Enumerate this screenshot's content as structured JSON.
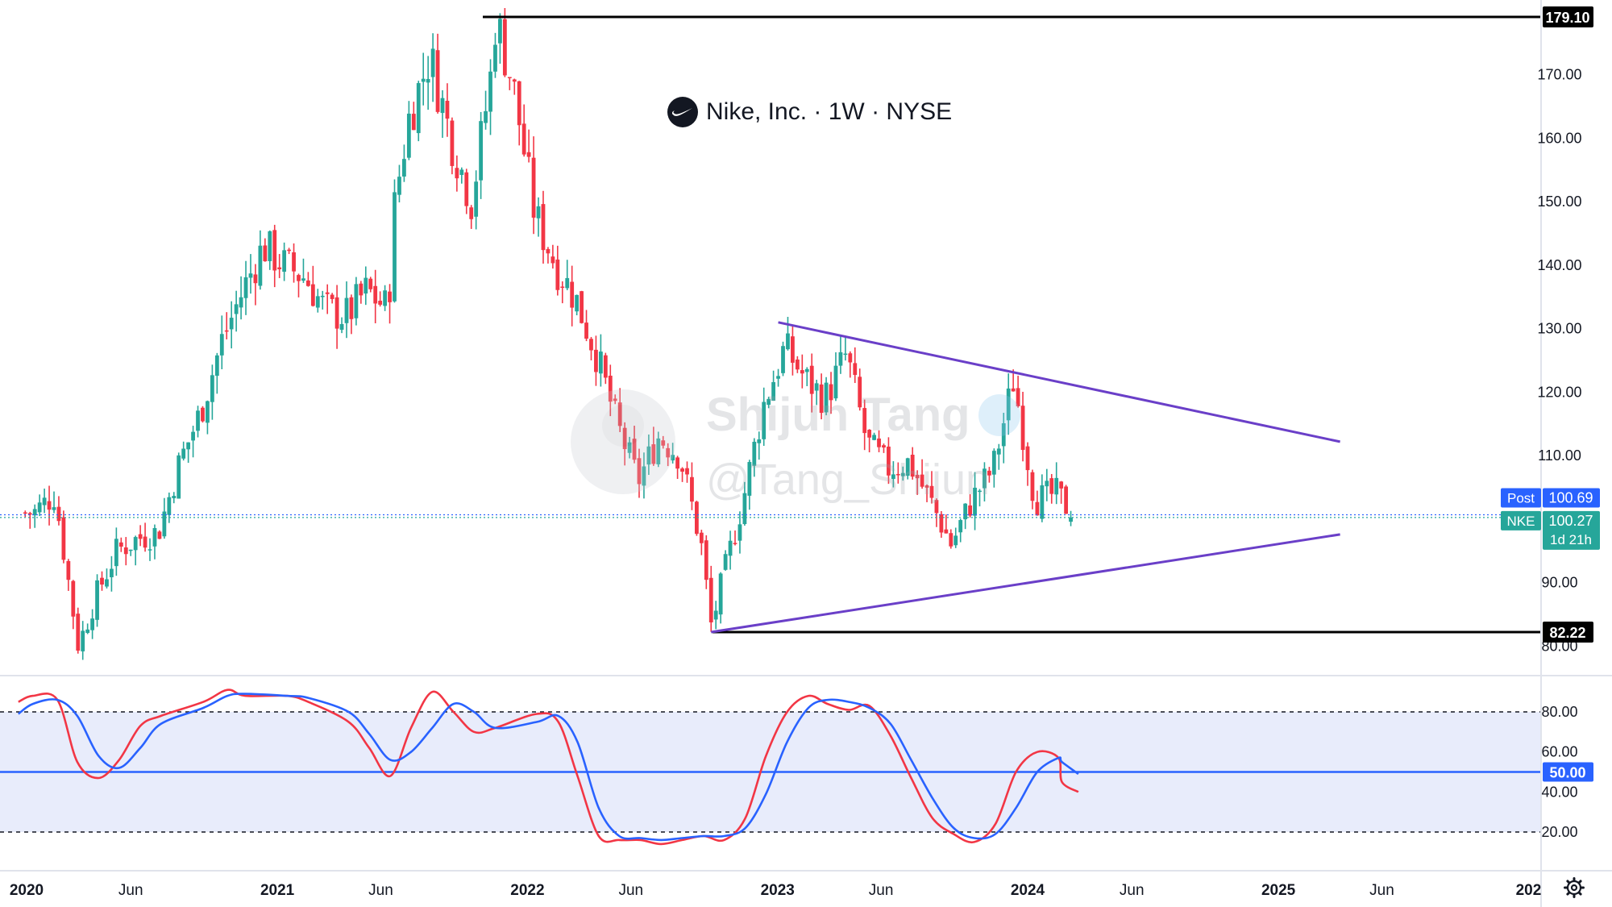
{
  "header": {
    "company": "Nike, Inc.",
    "interval": "1W",
    "exchange": "NYSE",
    "separator": "·",
    "logo_icon": "nike-swoosh-icon"
  },
  "watermark": {
    "name": "Shijun Tang",
    "handle": "@Tang_Shijun"
  },
  "chart_data": [
    {
      "type": "candlestick",
      "symbol": "NKE",
      "interval": "1W",
      "ylim": [
        78,
        181
      ],
      "y_ticks": [
        "80.00",
        "90.00",
        "110.00",
        "120.00",
        "130.00",
        "140.00",
        "150.00",
        "160.00",
        "170.00"
      ],
      "x_ticks": [
        "2020",
        "Jun",
        "2021",
        "Jun",
        "2022",
        "Jun",
        "2023",
        "Jun",
        "2024",
        "Jun",
        "2025",
        "Jun",
        "202"
      ],
      "price_levels": [
        {
          "label": "179.10",
          "value": 179.1,
          "style": "horizontal-line",
          "color": "#000000"
        },
        {
          "label": "82.22",
          "value": 82.22,
          "style": "horizontal-line",
          "color": "#000000"
        }
      ],
      "price_tags": [
        {
          "tag": "Post",
          "value": "100.69",
          "color": "#2962ff"
        },
        {
          "tag": "NKE",
          "value": "100.27",
          "countdown": "1d 21h",
          "color": "#26a69a"
        }
      ],
      "trendlines": [
        {
          "name": "upper",
          "from": [
            "2023-01-02",
            131.0
          ],
          "to": [
            "2025-04-01",
            112.2
          ],
          "color": "#6a3fc8"
        },
        {
          "name": "lower",
          "from": [
            "2022-09-26",
            82.22
          ],
          "to": [
            "2025-04-01",
            97.6
          ],
          "color": "#6a3fc8"
        }
      ],
      "price_path": [
        [
          "2020-01",
          101
        ],
        [
          "2020-02",
          104
        ],
        [
          "2020-03-20",
          80
        ],
        [
          "2020-04",
          88
        ],
        [
          "2020-05",
          95
        ],
        [
          "2020-06",
          97
        ],
        [
          "2020-07",
          98
        ],
        [
          "2020-08",
          109
        ],
        [
          "2020-09",
          117
        ],
        [
          "2020-10",
          128
        ],
        [
          "2020-11",
          136
        ],
        [
          "2020-12",
          143
        ],
        [
          "2021-01",
          140
        ],
        [
          "2021-02",
          138
        ],
        [
          "2021-03",
          133
        ],
        [
          "2021-04",
          132
        ],
        [
          "2021-05",
          136
        ],
        [
          "2021-06",
          133
        ],
        [
          "2021-06-25",
          150
        ],
        [
          "2021-07",
          163
        ],
        [
          "2021-08",
          173
        ],
        [
          "2021-09",
          160
        ],
        [
          "2021-10",
          150
        ],
        [
          "2021-11",
          172
        ],
        [
          "2021-11-19",
          179.1
        ],
        [
          "2021-12",
          168
        ],
        [
          "2022-01",
          148
        ],
        [
          "2022-02",
          140
        ],
        [
          "2022-03",
          135
        ],
        [
          "2022-04",
          126
        ],
        [
          "2022-05",
          115
        ],
        [
          "2022-06",
          106
        ],
        [
          "2022-07",
          113
        ],
        [
          "2022-08",
          110
        ],
        [
          "2022-09",
          96
        ],
        [
          "2022-09-30",
          83
        ],
        [
          "2022-10",
          90
        ],
        [
          "2022-11",
          103
        ],
        [
          "2022-12",
          118
        ],
        [
          "2023-01",
          127
        ],
        [
          "2023-02",
          122
        ],
        [
          "2023-03",
          119
        ],
        [
          "2023-04",
          126
        ],
        [
          "2023-05",
          112
        ],
        [
          "2023-06",
          108
        ],
        [
          "2023-07",
          109
        ],
        [
          "2023-08",
          103
        ],
        [
          "2023-09",
          96
        ],
        [
          "2023-10",
          103
        ],
        [
          "2023-11",
          108
        ],
        [
          "2023-12",
          122
        ],
        [
          "2024-01",
          103
        ],
        [
          "2024-02",
          104
        ],
        [
          "2024-03",
          100.27
        ]
      ]
    },
    {
      "type": "line",
      "name": "stochastic-oscillator",
      "ylim": [
        0,
        100
      ],
      "y_ticks": [
        "20.00",
        "40.00",
        "60.00",
        "80.00"
      ],
      "levels": [
        {
          "value": 80,
          "style": "dashed",
          "color": "#131722"
        },
        {
          "value": 50,
          "label": "50.00",
          "style": "solid",
          "color": "#2962ff"
        },
        {
          "value": 20,
          "style": "dashed",
          "color": "#131722"
        }
      ],
      "band": {
        "from": 20,
        "to": 80,
        "color": "#e8ecfb"
      },
      "series": [
        {
          "color": "#f23645",
          "points": [
            [
              "2019-12-20",
              85
            ],
            [
              "2020-01-10",
              88
            ],
            [
              "2020-02",
              86
            ],
            [
              "2020-03",
              55
            ],
            [
              "2020-04",
              47
            ],
            [
              "2020-05",
              56
            ],
            [
              "2020-06",
              73
            ],
            [
              "2020-07",
              78
            ],
            [
              "2020-09",
              85
            ],
            [
              "2020-10-20",
              91
            ],
            [
              "2020-11",
              88
            ],
            [
              "2021-01",
              88
            ],
            [
              "2021-02",
              85
            ],
            [
              "2021-04",
              75
            ],
            [
              "2021-05",
              62
            ],
            [
              "2021-06-15",
              48
            ],
            [
              "2021-07",
              72
            ],
            [
              "2021-08-15",
              90
            ],
            [
              "2021-09",
              80
            ],
            [
              "2021-10",
              70
            ],
            [
              "2021-11",
              72
            ],
            [
              "2022-01",
              79
            ],
            [
              "2022-02",
              75
            ],
            [
              "2022-03",
              48
            ],
            [
              "2022-04",
              18
            ],
            [
              "2022-05",
              16
            ],
            [
              "2022-06",
              16
            ],
            [
              "2022-07",
              14
            ],
            [
              "2022-08",
              16
            ],
            [
              "2022-09",
              18
            ],
            [
              "2022-10",
              16
            ],
            [
              "2022-11",
              27
            ],
            [
              "2022-12",
              58
            ],
            [
              "2023-01",
              80
            ],
            [
              "2023-02",
              88
            ],
            [
              "2023-03",
              84
            ],
            [
              "2023-04",
              81
            ],
            [
              "2023-05",
              83
            ],
            [
              "2023-06",
              68
            ],
            [
              "2023-07",
              47
            ],
            [
              "2023-08",
              27
            ],
            [
              "2023-09",
              19
            ],
            [
              "2023-10",
              15
            ],
            [
              "2023-11",
              24
            ],
            [
              "2023-12",
              50
            ],
            [
              "2024-01",
              60
            ],
            [
              "2024-02",
              57
            ],
            [
              "2024-02-20",
              45
            ],
            [
              "2024-03",
              40
            ]
          ]
        },
        {
          "color": "#2962ff",
          "points": [
            [
              "2019-12-20",
              79
            ],
            [
              "2020-01-10",
              84
            ],
            [
              "2020-02",
              86
            ],
            [
              "2020-03",
              78
            ],
            [
              "2020-04",
              58
            ],
            [
              "2020-05",
              52
            ],
            [
              "2020-06",
              62
            ],
            [
              "2020-07",
              74
            ],
            [
              "2020-09",
              82
            ],
            [
              "2020-10-20",
              88
            ],
            [
              "2020-11",
              89
            ],
            [
              "2021-01",
              88
            ],
            [
              "2021-02",
              87
            ],
            [
              "2021-04",
              80
            ],
            [
              "2021-05",
              69
            ],
            [
              "2021-06-15",
              56
            ],
            [
              "2021-07",
              60
            ],
            [
              "2021-08-15",
              72
            ],
            [
              "2021-09",
              84
            ],
            [
              "2021-10",
              80
            ],
            [
              "2021-11",
              72
            ],
            [
              "2022-01",
              75
            ],
            [
              "2022-02",
              78
            ],
            [
              "2022-03",
              65
            ],
            [
              "2022-04",
              32
            ],
            [
              "2022-05",
              18
            ],
            [
              "2022-06",
              17
            ],
            [
              "2022-07",
              16
            ],
            [
              "2022-08",
              17
            ],
            [
              "2022-09",
              18
            ],
            [
              "2022-10",
              18
            ],
            [
              "2022-11",
              22
            ],
            [
              "2022-12",
              39
            ],
            [
              "2023-01",
              65
            ],
            [
              "2023-02",
              82
            ],
            [
              "2023-03",
              86
            ],
            [
              "2023-04",
              85
            ],
            [
              "2023-05",
              82
            ],
            [
              "2023-06",
              74
            ],
            [
              "2023-07",
              56
            ],
            [
              "2023-08",
              37
            ],
            [
              "2023-09",
              22
            ],
            [
              "2023-10",
              17
            ],
            [
              "2023-11",
              19
            ],
            [
              "2023-12",
              32
            ],
            [
              "2024-01",
              50
            ],
            [
              "2024-02",
              57
            ],
            [
              "2024-02-20",
              55
            ],
            [
              "2024-03",
              49
            ]
          ]
        }
      ]
    }
  ],
  "colors": {
    "up": "#26a69a",
    "down": "#f23645",
    "trend": "#6a3fc8",
    "level": "#000000",
    "grid_dotted": "#2962ff"
  },
  "footer": {
    "settings_icon": "gear-icon"
  }
}
